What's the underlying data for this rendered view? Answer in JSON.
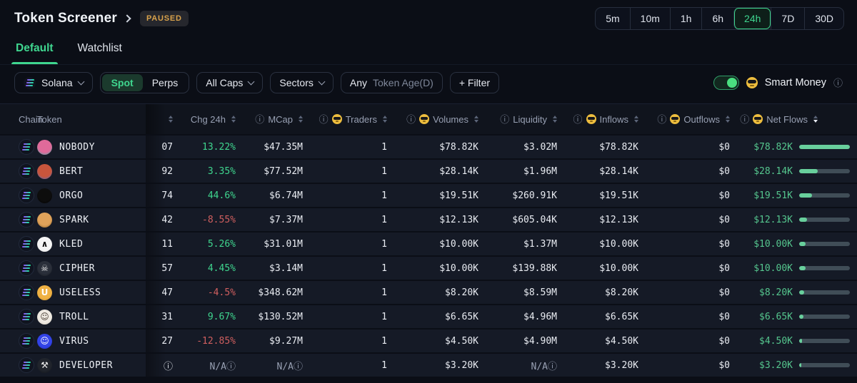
{
  "header": {
    "title": "Token Screener",
    "status_badge": "PAUSED"
  },
  "timeframes": {
    "options": [
      "5m",
      "10m",
      "1h",
      "6h",
      "24h",
      "7D",
      "30D"
    ],
    "selected": "24h"
  },
  "tabs": {
    "items": [
      "Default",
      "Watchlist"
    ],
    "selected": "Default"
  },
  "filters": {
    "chain_label": "Solana",
    "market_tabs": [
      "Spot",
      "Perps"
    ],
    "market_selected": "Spot",
    "caps_label": "All Caps",
    "sectors_label": "Sectors",
    "token_age_prefix": "Any",
    "token_age_label": "Token Age(D)",
    "add_filter_label": "+ Filter",
    "smart_money_label": "Smart Money",
    "smart_money_toggle_on": true
  },
  "table": {
    "columns": [
      {
        "label": "Chain"
      },
      {
        "label": "Token"
      },
      {
        "label": "",
        "sort": true
      },
      {
        "label": "Chg 24h",
        "sort": true
      },
      {
        "label": "MCap",
        "info": true,
        "sort": true
      },
      {
        "label": "Traders",
        "info": true,
        "smart": true,
        "sort": true
      },
      {
        "label": "Volumes",
        "info": true,
        "smart": true,
        "sort": true
      },
      {
        "label": "Liquidity",
        "info": true,
        "sort": true
      },
      {
        "label": "Inflows",
        "info": true,
        "smart": true,
        "sort": true
      },
      {
        "label": "Outflows",
        "info": true,
        "smart": true,
        "sort": true
      },
      {
        "label": "Net Flows",
        "info": true,
        "smart": true,
        "sort": true,
        "sorted": "desc"
      }
    ],
    "rows": [
      {
        "token": "NOBODY",
        "price_partial": "07",
        "chg": "13.22%",
        "chg_dir": "up",
        "mcap": "$47.35M",
        "traders": "1",
        "volume": "$78.82K",
        "liquidity": "$3.02M",
        "inflows": "$78.82K",
        "outflows": "$0",
        "netflows": "$78.82K",
        "bar_pct": 100,
        "avatar": {
          "c1": "#e06a9a",
          "c2": "#2fb8ab",
          "glyph": "",
          "glyph_color": ""
        }
      },
      {
        "token": "BERT",
        "price_partial": "92",
        "chg": "3.35%",
        "chg_dir": "up",
        "mcap": "$77.52M",
        "traders": "1",
        "volume": "$28.14K",
        "liquidity": "$1.96M",
        "inflows": "$28.14K",
        "outflows": "$0",
        "netflows": "$28.14K",
        "bar_pct": 36,
        "avatar": {
          "c1": "#c8553c",
          "c2": "#3f6fd0",
          "glyph": "",
          "glyph_color": ""
        }
      },
      {
        "token": "ORGO",
        "price_partial": "74",
        "chg": "44.6%",
        "chg_dir": "up",
        "mcap": "$6.74M",
        "traders": "1",
        "volume": "$19.51K",
        "liquidity": "$260.91K",
        "inflows": "$19.51K",
        "outflows": "$0",
        "netflows": "$19.51K",
        "bar_pct": 25,
        "avatar": {
          "c1": "#0d0d0d",
          "c2": "#000000",
          "glyph": "",
          "glyph_color": ""
        }
      },
      {
        "token": "SPARK",
        "price_partial": "42",
        "chg": "-8.55%",
        "chg_dir": "down",
        "mcap": "$7.37M",
        "traders": "1",
        "volume": "$12.13K",
        "liquidity": "$605.04K",
        "inflows": "$12.13K",
        "outflows": "$0",
        "netflows": "$12.13K",
        "bar_pct": 15,
        "avatar": {
          "c1": "#e0a35a",
          "c2": "#7d561f",
          "glyph": "",
          "glyph_color": ""
        }
      },
      {
        "token": "KLED",
        "price_partial": "11",
        "chg": "5.26%",
        "chg_dir": "up",
        "mcap": "$31.01M",
        "traders": "1",
        "volume": "$10.00K",
        "liquidity": "$1.37M",
        "inflows": "$10.00K",
        "outflows": "$0",
        "netflows": "$10.00K",
        "bar_pct": 13,
        "avatar": {
          "c1": "#f5f5f5",
          "c2": "#e2e2e2",
          "glyph": "∧",
          "glyph_color": "#111111"
        }
      },
      {
        "token": "CIPHER",
        "price_partial": "57",
        "chg": "4.45%",
        "chg_dir": "up",
        "mcap": "$3.14M",
        "traders": "1",
        "volume": "$10.00K",
        "liquidity": "$139.88K",
        "inflows": "$10.00K",
        "outflows": "$0",
        "netflows": "$10.00K",
        "bar_pct": 13,
        "avatar": {
          "c1": "#2a2f3a",
          "c2": "#14171d",
          "glyph": "☠",
          "glyph_color": "#e8e8e8"
        }
      },
      {
        "token": "USELESS",
        "price_partial": "47",
        "chg": "-4.5%",
        "chg_dir": "down",
        "mcap": "$348.62M",
        "traders": "1",
        "volume": "$8.20K",
        "liquidity": "$8.59M",
        "inflows": "$8.20K",
        "outflows": "$0",
        "netflows": "$8.20K",
        "bar_pct": 10,
        "avatar": {
          "c1": "#f0b244",
          "c2": "#d1922a",
          "glyph": "U",
          "glyph_color": "#ffffff"
        }
      },
      {
        "token": "TROLL",
        "price_partial": "31",
        "chg": "9.67%",
        "chg_dir": "up",
        "mcap": "$130.52M",
        "traders": "1",
        "volume": "$6.65K",
        "liquidity": "$4.96M",
        "inflows": "$6.65K",
        "outflows": "$0",
        "netflows": "$6.65K",
        "bar_pct": 8,
        "avatar": {
          "c1": "#efeae2",
          "c2": "#cfc8bc",
          "glyph": "☺",
          "glyph_color": "#4a3f35"
        }
      },
      {
        "token": "VIRUS",
        "price_partial": "27",
        "chg": "-12.85%",
        "chg_dir": "down",
        "mcap": "$9.27M",
        "traders": "1",
        "volume": "$4.50K",
        "liquidity": "$4.90M",
        "inflows": "$4.50K",
        "outflows": "$0",
        "netflows": "$4.50K",
        "bar_pct": 6,
        "avatar": {
          "c1": "#3344e8",
          "c2": "#1f2bc0",
          "glyph": "☺",
          "glyph_color": "#ffffff"
        }
      },
      {
        "token": "DEVELOPER",
        "price_partial": "ⓘ",
        "chg": "N/Aⓘ",
        "chg_dir": "na",
        "mcap": "N/Aⓘ",
        "traders": "1",
        "volume": "$3.20K",
        "liquidity": "N/Aⓘ",
        "inflows": "$3.20K",
        "outflows": "$0",
        "netflows": "$3.20K",
        "bar_pct": 4,
        "avatar": {
          "c1": "#20242c",
          "c2": "#101318",
          "glyph": "⚒",
          "glyph_color": "#eeeeee"
        }
      }
    ]
  },
  "icons": {
    "info": "ⓘ",
    "smart_money_emoji": "smart-money-sunglasses-face",
    "chain_icon": "solana-logo"
  },
  "colors": {
    "accent_green": "#3fd68f",
    "negative_red": "#d05f5f",
    "paused_orange": "#d9a24b",
    "netflow_text": "#55c68e",
    "bar_fill": "#68cf9c",
    "bar_track": "#404d57"
  }
}
